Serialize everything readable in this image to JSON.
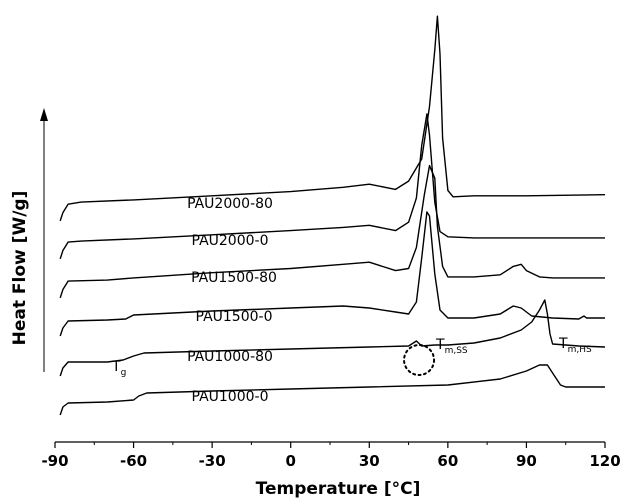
{
  "chart_data": {
    "type": "line",
    "xlabel": "Temperature [°C]",
    "ylabel": "Heat Flow [W/g]",
    "xlim": [
      -90,
      120
    ],
    "xticks": [
      -90,
      -60,
      -30,
      0,
      30,
      60,
      90,
      120
    ],
    "yticks_shown": false,
    "grid": false,
    "legend": "none",
    "series": [
      {
        "name": "PAU2000-80",
        "points": [
          [
            -88,
            -0.95
          ],
          [
            -87,
            -0.55
          ],
          [
            -85,
            -0.15
          ],
          [
            -80,
            -0.05
          ],
          [
            -60,
            0.05
          ],
          [
            -30,
            0.25
          ],
          [
            0,
            0.45
          ],
          [
            20,
            0.65
          ],
          [
            30,
            0.8
          ],
          [
            40,
            0.55
          ],
          [
            45,
            0.95
          ],
          [
            50,
            2.0
          ],
          [
            53,
            4.5
          ],
          [
            55,
            7.2
          ],
          [
            56,
            8.8
          ],
          [
            57,
            7.0
          ],
          [
            58,
            3.0
          ],
          [
            60,
            0.5
          ],
          [
            62,
            0.2
          ],
          [
            70,
            0.25
          ],
          [
            90,
            0.25
          ],
          [
            120,
            0.3
          ]
        ]
      },
      {
        "name": "PAU2000-0",
        "points": [
          [
            -88,
            -0.9
          ],
          [
            -87,
            -0.5
          ],
          [
            -85,
            -0.1
          ],
          [
            -80,
            -0.05
          ],
          [
            -60,
            0.05
          ],
          [
            -30,
            0.25
          ],
          [
            0,
            0.45
          ],
          [
            20,
            0.6
          ],
          [
            30,
            0.7
          ],
          [
            40,
            0.45
          ],
          [
            45,
            0.85
          ],
          [
            48,
            2.0
          ],
          [
            50,
            4.5
          ],
          [
            52,
            6.0
          ],
          [
            53,
            5.0
          ],
          [
            55,
            1.8
          ],
          [
            57,
            0.4
          ],
          [
            60,
            0.15
          ],
          [
            70,
            0.1
          ],
          [
            90,
            0.1
          ],
          [
            120,
            0.1
          ]
        ]
      },
      {
        "name": "PAU1500-80",
        "points": [
          [
            -88,
            -0.9
          ],
          [
            -87,
            -0.5
          ],
          [
            -85,
            -0.1
          ],
          [
            -70,
            -0.05
          ],
          [
            -60,
            0.05
          ],
          [
            -30,
            0.3
          ],
          [
            0,
            0.5
          ],
          [
            20,
            0.7
          ],
          [
            30,
            0.8
          ],
          [
            40,
            0.4
          ],
          [
            45,
            0.5
          ],
          [
            48,
            1.5
          ],
          [
            51,
            4.0
          ],
          [
            53,
            5.4
          ],
          [
            55,
            4.8
          ],
          [
            56,
            2.5
          ],
          [
            58,
            0.6
          ],
          [
            60,
            0.1
          ],
          [
            70,
            0.1
          ],
          [
            80,
            0.2
          ],
          [
            85,
            0.6
          ],
          [
            88,
            0.7
          ],
          [
            90,
            0.4
          ],
          [
            95,
            0.1
          ],
          [
            100,
            0.05
          ],
          [
            120,
            0.05
          ]
        ]
      },
      {
        "name": "PAU1500-0",
        "points": [
          [
            -88,
            -0.9
          ],
          [
            -87,
            -0.5
          ],
          [
            -85,
            -0.15
          ],
          [
            -70,
            -0.1
          ],
          [
            -63,
            -0.05
          ],
          [
            -60,
            0.15
          ],
          [
            -30,
            0.35
          ],
          [
            0,
            0.5
          ],
          [
            20,
            0.6
          ],
          [
            30,
            0.5
          ],
          [
            40,
            0.3
          ],
          [
            45,
            0.2
          ],
          [
            48,
            0.8
          ],
          [
            50,
            3.0
          ],
          [
            52,
            5.3
          ],
          [
            53,
            5.1
          ],
          [
            55,
            2.2
          ],
          [
            57,
            0.4
          ],
          [
            60,
            0.0
          ],
          [
            70,
            0.0
          ],
          [
            80,
            0.2
          ],
          [
            85,
            0.6
          ],
          [
            88,
            0.5
          ],
          [
            92,
            0.1
          ],
          [
            100,
            0.0
          ],
          [
            110,
            -0.05
          ],
          [
            112,
            0.1
          ],
          [
            113,
            0.0
          ],
          [
            120,
            0.0
          ]
        ]
      },
      {
        "name": "PAU1000-80",
        "points": [
          [
            -88,
            -0.9
          ],
          [
            -87,
            -0.5
          ],
          [
            -85,
            -0.2
          ],
          [
            -70,
            -0.2
          ],
          [
            -64,
            -0.1
          ],
          [
            -60,
            0.1
          ],
          [
            -56,
            0.25
          ],
          [
            -30,
            0.35
          ],
          [
            0,
            0.45
          ],
          [
            30,
            0.55
          ],
          [
            45,
            0.6
          ],
          [
            48,
            0.85
          ],
          [
            50,
            0.6
          ],
          [
            55,
            0.65
          ],
          [
            60,
            0.65
          ],
          [
            70,
            0.75
          ],
          [
            80,
            1.0
          ],
          [
            88,
            1.4
          ],
          [
            92,
            1.8
          ],
          [
            95,
            2.4
          ],
          [
            97,
            2.9
          ],
          [
            98,
            2.2
          ],
          [
            99,
            1.2
          ],
          [
            100,
            0.7
          ],
          [
            110,
            0.6
          ],
          [
            120,
            0.55
          ]
        ]
      },
      {
        "name": "PAU1000-0",
        "points": [
          [
            -88,
            -0.9
          ],
          [
            -87,
            -0.5
          ],
          [
            -85,
            -0.3
          ],
          [
            -70,
            -0.25
          ],
          [
            -60,
            -0.15
          ],
          [
            -58,
            0.05
          ],
          [
            -55,
            0.2
          ],
          [
            -30,
            0.3
          ],
          [
            0,
            0.4
          ],
          [
            30,
            0.5
          ],
          [
            60,
            0.6
          ],
          [
            80,
            0.9
          ],
          [
            90,
            1.3
          ],
          [
            95,
            1.6
          ],
          [
            98,
            1.6
          ],
          [
            100,
            1.2
          ],
          [
            103,
            0.6
          ],
          [
            105,
            0.5
          ],
          [
            120,
            0.5
          ]
        ]
      }
    ],
    "annotations": [
      {
        "main": "T",
        "sub": "g",
        "x": -64
      },
      {
        "main": "T",
        "sub": "m,SS",
        "x": 49
      },
      {
        "main": "T",
        "sub": "m,HS",
        "x": 99
      }
    ]
  }
}
